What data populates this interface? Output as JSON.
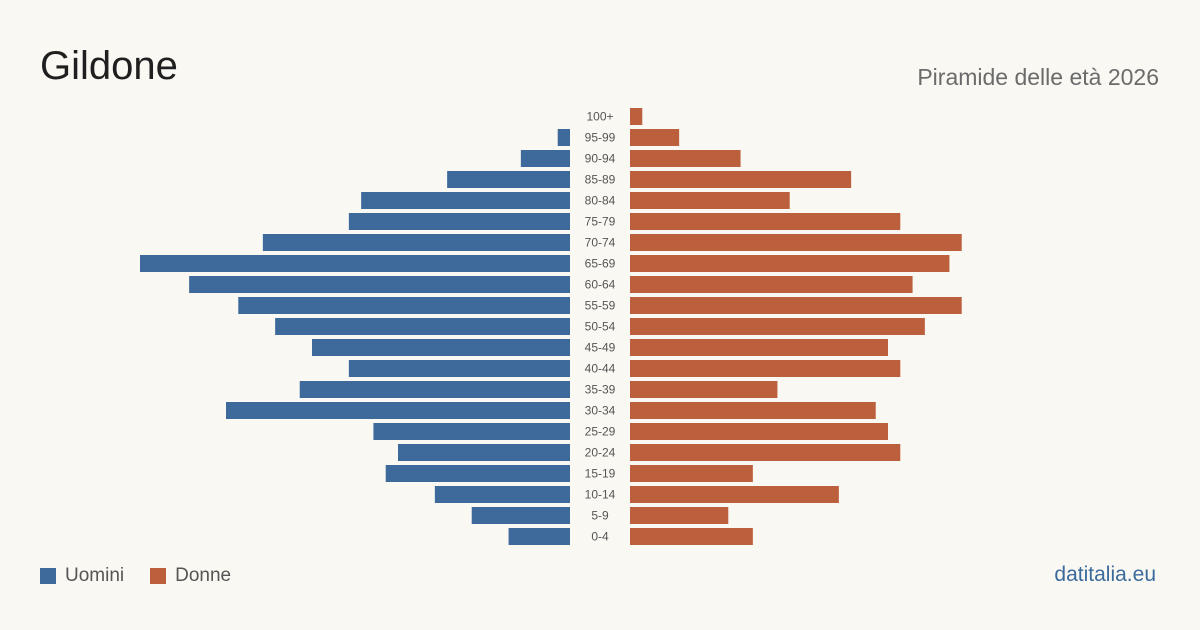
{
  "header": {
    "title": "Gildone",
    "subtitle": "Piramide delle età 2026"
  },
  "legend": {
    "male_label": "Uomini",
    "female_label": "Donne"
  },
  "brand": "datitalia.eu",
  "colors": {
    "male": "#3d6a9b",
    "female": "#bc5f3d",
    "background": "#faf8f3"
  },
  "chart_data": {
    "type": "bar",
    "orientation": "horizontal-pyramid",
    "categories": [
      "100+",
      "95-99",
      "90-94",
      "85-89",
      "80-84",
      "75-79",
      "70-74",
      "65-69",
      "60-64",
      "55-59",
      "50-54",
      "45-49",
      "40-44",
      "35-39",
      "30-34",
      "25-29",
      "20-24",
      "15-19",
      "10-14",
      "5-9",
      "0-4"
    ],
    "series": [
      {
        "name": "Uomini",
        "values": [
          0,
          1,
          4,
          10,
          17,
          18,
          25,
          35,
          31,
          27,
          24,
          21,
          18,
          22,
          28,
          16,
          14,
          15,
          11,
          8,
          5
        ]
      },
      {
        "name": "Donne",
        "values": [
          1,
          4,
          9,
          18,
          13,
          22,
          27,
          26,
          23,
          27,
          24,
          21,
          22,
          12,
          20,
          21,
          22,
          10,
          17,
          8,
          10
        ]
      }
    ],
    "xlim": [
      0,
      35
    ],
    "grid": false,
    "legend_position": "bottom-left"
  }
}
